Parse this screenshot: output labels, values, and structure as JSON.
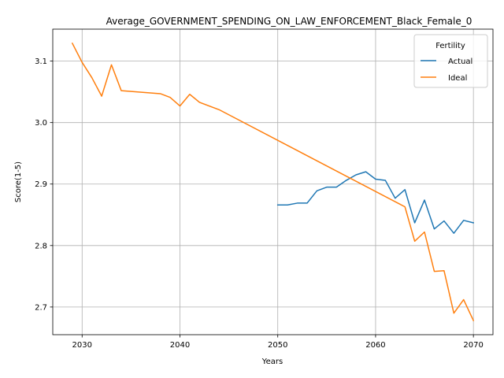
{
  "chart_data": {
    "type": "line",
    "title": "Average_GOVERNMENT_SPENDING_ON_LAW_ENFORCEMENT_Black_Female_0",
    "xlabel": "Years",
    "ylabel": "Score(1-5)",
    "xlim": [
      2027,
      2072
    ],
    "ylim": [
      2.655,
      3.152
    ],
    "xticks": [
      2030,
      2040,
      2050,
      2060,
      2070
    ],
    "yticks": [
      2.7,
      2.8,
      2.9,
      3.0,
      3.1
    ],
    "ytick_labels": [
      "2.7",
      "2.8",
      "2.9",
      "3.0",
      "3.1"
    ],
    "grid": true,
    "legend": {
      "title": "Fertility",
      "placement": "top-right"
    },
    "series": [
      {
        "name": "Actual",
        "color": "#1f77b4",
        "x": [
          2050,
          2051,
          2052,
          2053,
          2054,
          2055,
          2056,
          2057,
          2058,
          2059,
          2060,
          2061,
          2062,
          2063,
          2064,
          2065,
          2066,
          2067,
          2068,
          2069,
          2070
        ],
        "y": [
          2.866,
          2.866,
          2.869,
          2.869,
          2.889,
          2.895,
          2.895,
          2.906,
          2.915,
          2.92,
          2.908,
          2.906,
          2.877,
          2.891,
          2.837,
          2.874,
          2.827,
          2.84,
          2.82,
          2.841,
          2.837
        ]
      },
      {
        "name": "Ideal",
        "color": "#ff7f0e",
        "x": [
          2029,
          2030,
          2031,
          2032,
          2033,
          2034,
          2038,
          2039,
          2040,
          2041,
          2042,
          2044,
          2063,
          2064,
          2065,
          2066,
          2067,
          2068,
          2069,
          2070
        ],
        "y": [
          3.129,
          3.098,
          3.073,
          3.043,
          3.094,
          3.052,
          3.047,
          3.041,
          3.027,
          3.046,
          3.033,
          3.021,
          2.863,
          2.807,
          2.822,
          2.758,
          2.759,
          2.69,
          2.712,
          2.678
        ]
      }
    ]
  }
}
